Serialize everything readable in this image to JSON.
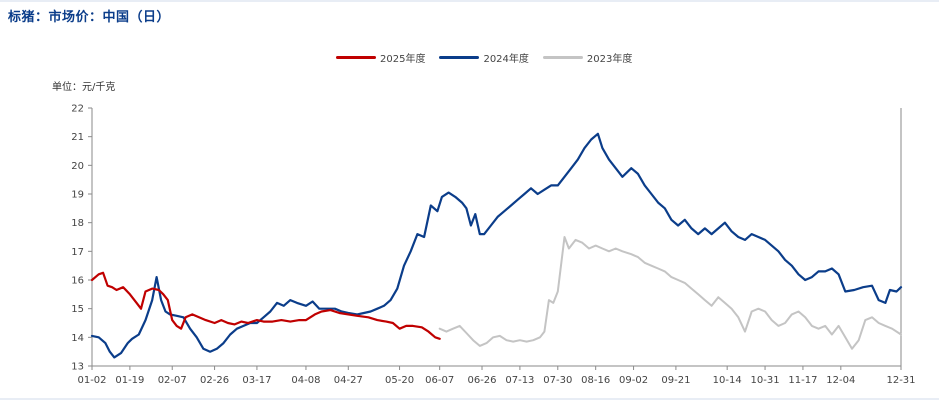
{
  "header": {
    "title": "标猪：市场价：中国（日）"
  },
  "unit": "单位：元/千克",
  "colors": {
    "s2025": "#c00000",
    "s2024": "#0b3d8a",
    "s2023": "#c4c4c4"
  },
  "chart_data": {
    "type": "line",
    "title": "标猪：市场价：中国（日）",
    "xlabel": "",
    "ylabel": "单位：元/千克",
    "x_ticks": [
      "01-02",
      "01-19",
      "02-07",
      "02-26",
      "03-17",
      "04-08",
      "04-27",
      "05-20",
      "06-07",
      "06-26",
      "07-13",
      "07-30",
      "08-16",
      "09-02",
      "09-21",
      "10-14",
      "10-31",
      "11-17",
      "12-04",
      "12-31"
    ],
    "y_ticks": [
      13,
      14,
      15,
      16,
      17,
      18,
      19,
      20,
      21,
      22
    ],
    "ylim": [
      13,
      22
    ],
    "grid": false,
    "legend_position": "top-center",
    "series": [
      {
        "name": "2025年度",
        "color": "#c00000",
        "points": [
          [
            "01-02",
            16.0
          ],
          [
            "01-05",
            16.2
          ],
          [
            "01-07",
            16.25
          ],
          [
            "01-09",
            15.8
          ],
          [
            "01-11",
            15.75
          ],
          [
            "01-13",
            15.65
          ],
          [
            "01-16",
            15.75
          ],
          [
            "01-19",
            15.5
          ],
          [
            "01-22",
            15.2
          ],
          [
            "01-24",
            15.0
          ],
          [
            "01-26",
            15.6
          ],
          [
            "01-29",
            15.7
          ],
          [
            "02-01",
            15.65
          ],
          [
            "02-03",
            15.5
          ],
          [
            "02-05",
            15.3
          ],
          [
            "02-07",
            14.6
          ],
          [
            "02-09",
            14.4
          ],
          [
            "02-11",
            14.3
          ],
          [
            "02-13",
            14.7
          ],
          [
            "02-16",
            14.8
          ],
          [
            "02-19",
            14.7
          ],
          [
            "02-22",
            14.6
          ],
          [
            "02-26",
            14.5
          ],
          [
            "03-01",
            14.6
          ],
          [
            "03-04",
            14.5
          ],
          [
            "03-07",
            14.45
          ],
          [
            "03-10",
            14.55
          ],
          [
            "03-13",
            14.5
          ],
          [
            "03-17",
            14.6
          ],
          [
            "03-20",
            14.55
          ],
          [
            "03-24",
            14.55
          ],
          [
            "03-28",
            14.6
          ],
          [
            "04-01",
            14.55
          ],
          [
            "04-05",
            14.6
          ],
          [
            "04-08",
            14.6
          ],
          [
            "04-12",
            14.8
          ],
          [
            "04-15",
            14.9
          ],
          [
            "04-19",
            14.95
          ],
          [
            "04-23",
            14.85
          ],
          [
            "04-27",
            14.8
          ],
          [
            "05-01",
            14.75
          ],
          [
            "05-06",
            14.7
          ],
          [
            "05-10",
            14.6
          ],
          [
            "05-14",
            14.55
          ],
          [
            "05-17",
            14.5
          ],
          [
            "05-20",
            14.3
          ],
          [
            "05-23",
            14.4
          ],
          [
            "05-26",
            14.4
          ],
          [
            "05-30",
            14.35
          ],
          [
            "06-02",
            14.2
          ],
          [
            "06-05",
            14.0
          ],
          [
            "06-07",
            13.95
          ]
        ]
      },
      {
        "name": "2024年度",
        "color": "#0b3d8a",
        "points": [
          [
            "01-02",
            14.05
          ],
          [
            "01-05",
            14.0
          ],
          [
            "01-08",
            13.8
          ],
          [
            "01-10",
            13.5
          ],
          [
            "01-12",
            13.3
          ],
          [
            "01-15",
            13.45
          ],
          [
            "01-18",
            13.8
          ],
          [
            "01-20",
            13.95
          ],
          [
            "01-23",
            14.1
          ],
          [
            "01-26",
            14.6
          ],
          [
            "01-29",
            15.3
          ],
          [
            "01-31",
            16.1
          ],
          [
            "02-02",
            15.3
          ],
          [
            "02-04",
            14.9
          ],
          [
            "02-06",
            14.8
          ],
          [
            "02-09",
            14.75
          ],
          [
            "02-12",
            14.7
          ],
          [
            "02-15",
            14.3
          ],
          [
            "02-18",
            14.0
          ],
          [
            "02-21",
            13.6
          ],
          [
            "02-24",
            13.5
          ],
          [
            "02-27",
            13.6
          ],
          [
            "03-02",
            13.8
          ],
          [
            "03-05",
            14.1
          ],
          [
            "03-08",
            14.3
          ],
          [
            "03-11",
            14.4
          ],
          [
            "03-14",
            14.5
          ],
          [
            "03-17",
            14.5
          ],
          [
            "03-20",
            14.7
          ],
          [
            "03-23",
            14.9
          ],
          [
            "03-26",
            15.2
          ],
          [
            "03-29",
            15.1
          ],
          [
            "04-01",
            15.3
          ],
          [
            "04-04",
            15.2
          ],
          [
            "04-08",
            15.1
          ],
          [
            "04-11",
            15.25
          ],
          [
            "04-14",
            15.0
          ],
          [
            "04-17",
            15.0
          ],
          [
            "04-21",
            15.0
          ],
          [
            "04-24",
            14.9
          ],
          [
            "04-27",
            14.85
          ],
          [
            "05-01",
            14.8
          ],
          [
            "05-04",
            14.85
          ],
          [
            "05-07",
            14.9
          ],
          [
            "05-10",
            15.0
          ],
          [
            "05-13",
            15.1
          ],
          [
            "05-16",
            15.3
          ],
          [
            "05-19",
            15.7
          ],
          [
            "05-22",
            16.5
          ],
          [
            "05-25",
            17.0
          ],
          [
            "05-28",
            17.6
          ],
          [
            "05-31",
            17.5
          ],
          [
            "06-03",
            18.6
          ],
          [
            "06-06",
            18.4
          ],
          [
            "06-08",
            18.9
          ],
          [
            "06-11",
            19.05
          ],
          [
            "06-14",
            18.9
          ],
          [
            "06-17",
            18.7
          ],
          [
            "06-19",
            18.5
          ],
          [
            "06-21",
            17.9
          ],
          [
            "06-23",
            18.3
          ],
          [
            "06-25",
            17.6
          ],
          [
            "06-27",
            17.6
          ],
          [
            "06-30",
            17.9
          ],
          [
            "07-03",
            18.2
          ],
          [
            "07-06",
            18.4
          ],
          [
            "07-09",
            18.6
          ],
          [
            "07-12",
            18.8
          ],
          [
            "07-15",
            19.0
          ],
          [
            "07-18",
            19.2
          ],
          [
            "07-21",
            19.0
          ],
          [
            "07-24",
            19.15
          ],
          [
            "07-27",
            19.3
          ],
          [
            "07-30",
            19.3
          ],
          [
            "08-02",
            19.6
          ],
          [
            "08-05",
            19.9
          ],
          [
            "08-08",
            20.2
          ],
          [
            "08-11",
            20.6
          ],
          [
            "08-14",
            20.9
          ],
          [
            "08-17",
            21.1
          ],
          [
            "08-19",
            20.6
          ],
          [
            "08-22",
            20.2
          ],
          [
            "08-25",
            19.9
          ],
          [
            "08-28",
            19.6
          ],
          [
            "09-01",
            19.9
          ],
          [
            "09-04",
            19.7
          ],
          [
            "09-07",
            19.3
          ],
          [
            "09-10",
            19.0
          ],
          [
            "09-13",
            18.7
          ],
          [
            "09-16",
            18.5
          ],
          [
            "09-19",
            18.1
          ],
          [
            "09-22",
            17.9
          ],
          [
            "09-25",
            18.1
          ],
          [
            "09-28",
            17.8
          ],
          [
            "10-01",
            17.6
          ],
          [
            "10-04",
            17.8
          ],
          [
            "10-07",
            17.6
          ],
          [
            "10-10",
            17.8
          ],
          [
            "10-13",
            18.0
          ],
          [
            "10-16",
            17.7
          ],
          [
            "10-19",
            17.5
          ],
          [
            "10-22",
            17.4
          ],
          [
            "10-25",
            17.6
          ],
          [
            "10-28",
            17.5
          ],
          [
            "10-31",
            17.4
          ],
          [
            "11-03",
            17.2
          ],
          [
            "11-06",
            17.0
          ],
          [
            "11-09",
            16.7
          ],
          [
            "11-12",
            16.5
          ],
          [
            "11-15",
            16.2
          ],
          [
            "11-18",
            16.0
          ],
          [
            "11-21",
            16.1
          ],
          [
            "11-24",
            16.3
          ],
          [
            "11-27",
            16.3
          ],
          [
            "11-30",
            16.4
          ],
          [
            "12-03",
            16.2
          ],
          [
            "12-06",
            15.6
          ],
          [
            "12-10",
            15.65
          ],
          [
            "12-14",
            15.75
          ],
          [
            "12-18",
            15.8
          ],
          [
            "12-21",
            15.3
          ],
          [
            "12-24",
            15.2
          ],
          [
            "12-26",
            15.65
          ],
          [
            "12-29",
            15.6
          ],
          [
            "12-31",
            15.75
          ]
        ]
      },
      {
        "name": "2023年度",
        "color": "#c4c4c4",
        "points": [
          [
            "06-07",
            14.3
          ],
          [
            "06-10",
            14.2
          ],
          [
            "06-13",
            14.3
          ],
          [
            "06-16",
            14.4
          ],
          [
            "06-19",
            14.15
          ],
          [
            "06-22",
            13.9
          ],
          [
            "06-25",
            13.7
          ],
          [
            "06-28",
            13.8
          ],
          [
            "07-01",
            14.0
          ],
          [
            "07-04",
            14.05
          ],
          [
            "07-07",
            13.9
          ],
          [
            "07-10",
            13.85
          ],
          [
            "07-13",
            13.9
          ],
          [
            "07-16",
            13.85
          ],
          [
            "07-19",
            13.9
          ],
          [
            "07-22",
            14.0
          ],
          [
            "07-24",
            14.2
          ],
          [
            "07-26",
            15.3
          ],
          [
            "07-28",
            15.2
          ],
          [
            "07-30",
            15.6
          ],
          [
            "08-02",
            17.5
          ],
          [
            "08-04",
            17.1
          ],
          [
            "08-07",
            17.4
          ],
          [
            "08-10",
            17.3
          ],
          [
            "08-13",
            17.1
          ],
          [
            "08-16",
            17.2
          ],
          [
            "08-19",
            17.1
          ],
          [
            "08-22",
            17.0
          ],
          [
            "08-25",
            17.1
          ],
          [
            "08-28",
            17.0
          ],
          [
            "09-01",
            16.9
          ],
          [
            "09-04",
            16.8
          ],
          [
            "09-07",
            16.6
          ],
          [
            "09-10",
            16.5
          ],
          [
            "09-13",
            16.4
          ],
          [
            "09-16",
            16.3
          ],
          [
            "09-19",
            16.1
          ],
          [
            "09-22",
            16.0
          ],
          [
            "09-25",
            15.9
          ],
          [
            "09-28",
            15.7
          ],
          [
            "10-01",
            15.5
          ],
          [
            "10-04",
            15.3
          ],
          [
            "10-07",
            15.1
          ],
          [
            "10-10",
            15.4
          ],
          [
            "10-13",
            15.2
          ],
          [
            "10-16",
            15.0
          ],
          [
            "10-19",
            14.7
          ],
          [
            "10-22",
            14.2
          ],
          [
            "10-25",
            14.9
          ],
          [
            "10-28",
            15.0
          ],
          [
            "10-31",
            14.9
          ],
          [
            "11-03",
            14.6
          ],
          [
            "11-06",
            14.4
          ],
          [
            "11-09",
            14.5
          ],
          [
            "11-12",
            14.8
          ],
          [
            "11-15",
            14.9
          ],
          [
            "11-18",
            14.7
          ],
          [
            "11-21",
            14.4
          ],
          [
            "11-24",
            14.3
          ],
          [
            "11-27",
            14.4
          ],
          [
            "11-30",
            14.1
          ],
          [
            "12-03",
            14.4
          ],
          [
            "12-06",
            14.0
          ],
          [
            "12-09",
            13.6
          ],
          [
            "12-12",
            13.9
          ],
          [
            "12-15",
            14.6
          ],
          [
            "12-18",
            14.7
          ],
          [
            "12-21",
            14.5
          ],
          [
            "12-24",
            14.4
          ],
          [
            "12-27",
            14.3
          ],
          [
            "12-31",
            14.1
          ]
        ]
      }
    ]
  }
}
